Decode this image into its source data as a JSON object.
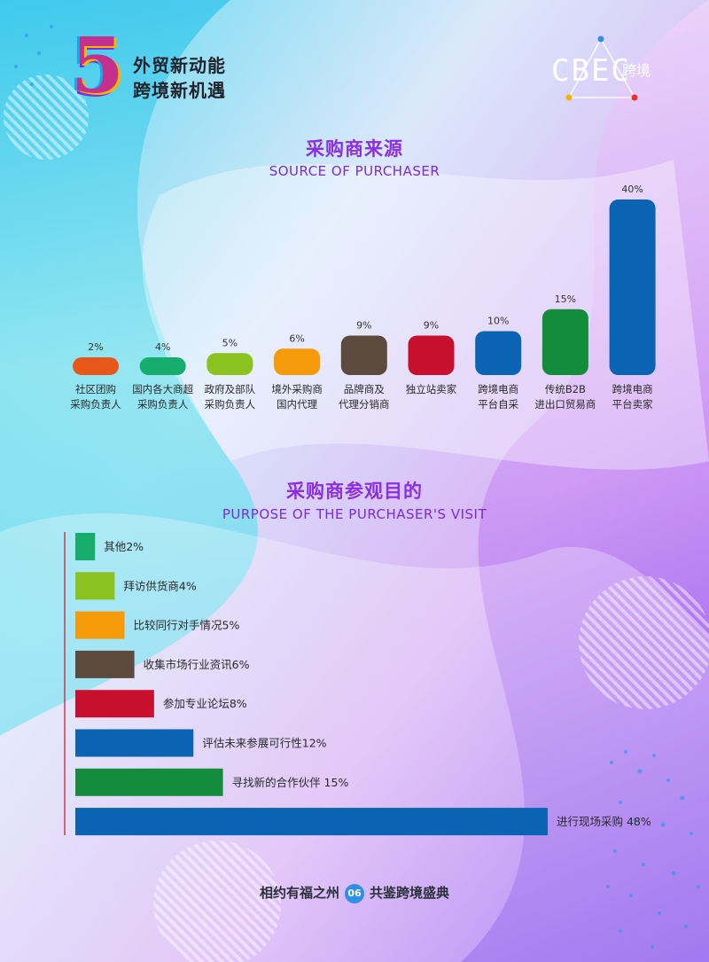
{
  "brand": {
    "number": "5",
    "line1": "外贸新动能",
    "line2": "跨境新机遇",
    "logo_text": "CBEC",
    "logo_sub": "跨境"
  },
  "section1": {
    "title": "采购商来源",
    "subtitle": "SOURCE OF PURCHASER"
  },
  "section2": {
    "title": "采购商参观目的",
    "subtitle": "PURPOSE OF THE PURCHASER'S VISIT"
  },
  "footer": {
    "left": "相约有福之州",
    "page": "06",
    "right": "共鉴跨境盛典"
  },
  "chart_data": [
    {
      "type": "bar",
      "title": "采购商来源",
      "subtitle": "SOURCE OF PURCHASER",
      "orientation": "vertical",
      "categories": [
        [
          "社区团购",
          "采购负责人"
        ],
        [
          "国内各大商超",
          "采购负责人"
        ],
        [
          "政府及部队",
          "采购负责人"
        ],
        [
          "境外采购商",
          "国内代理"
        ],
        [
          "品牌商及",
          "代理分销商"
        ],
        [
          "独立站卖家"
        ],
        [
          "跨境电商",
          "平台自采"
        ],
        [
          "传统B2B",
          "进出口贸易商"
        ],
        [
          "跨境电商",
          "平台卖家"
        ]
      ],
      "values": [
        2,
        4,
        5,
        6,
        9,
        9,
        10,
        15,
        40
      ],
      "value_labels": [
        "2%",
        "4%",
        "5%",
        "6%",
        "9%",
        "9%",
        "10%",
        "15%",
        "40%"
      ],
      "colors": [
        "#e8571a",
        "#17ad6c",
        "#8cc21f",
        "#f59a0a",
        "#5c4a3e",
        "#c8102e",
        "#0a64b3",
        "#138c3c",
        "#0a64b3"
      ],
      "unit": "%",
      "ylim": [
        0,
        40
      ],
      "grid": false
    },
    {
      "type": "bar",
      "title": "采购商参观目的",
      "subtitle": "PURPOSE OF THE PURCHASER'S VISIT",
      "orientation": "horizontal",
      "labels": [
        "其他2%",
        "拜访供货商4%",
        "比较同行对手情况5%",
        "收集市场行业资讯6%",
        "参加专业论坛8%",
        "评估未来参展可行性12%",
        "寻找新的合作伙伴 15%",
        "进行现场采购 48%"
      ],
      "values": [
        2,
        4,
        5,
        6,
        8,
        12,
        15,
        48
      ],
      "colors": [
        "#17ad6c",
        "#8cc21f",
        "#f59a0a",
        "#5c4a3e",
        "#c8102e",
        "#0a64b3",
        "#138c3c",
        "#0a64b3"
      ],
      "unit": "%",
      "xlim": [
        0,
        48
      ],
      "grid": false
    }
  ]
}
